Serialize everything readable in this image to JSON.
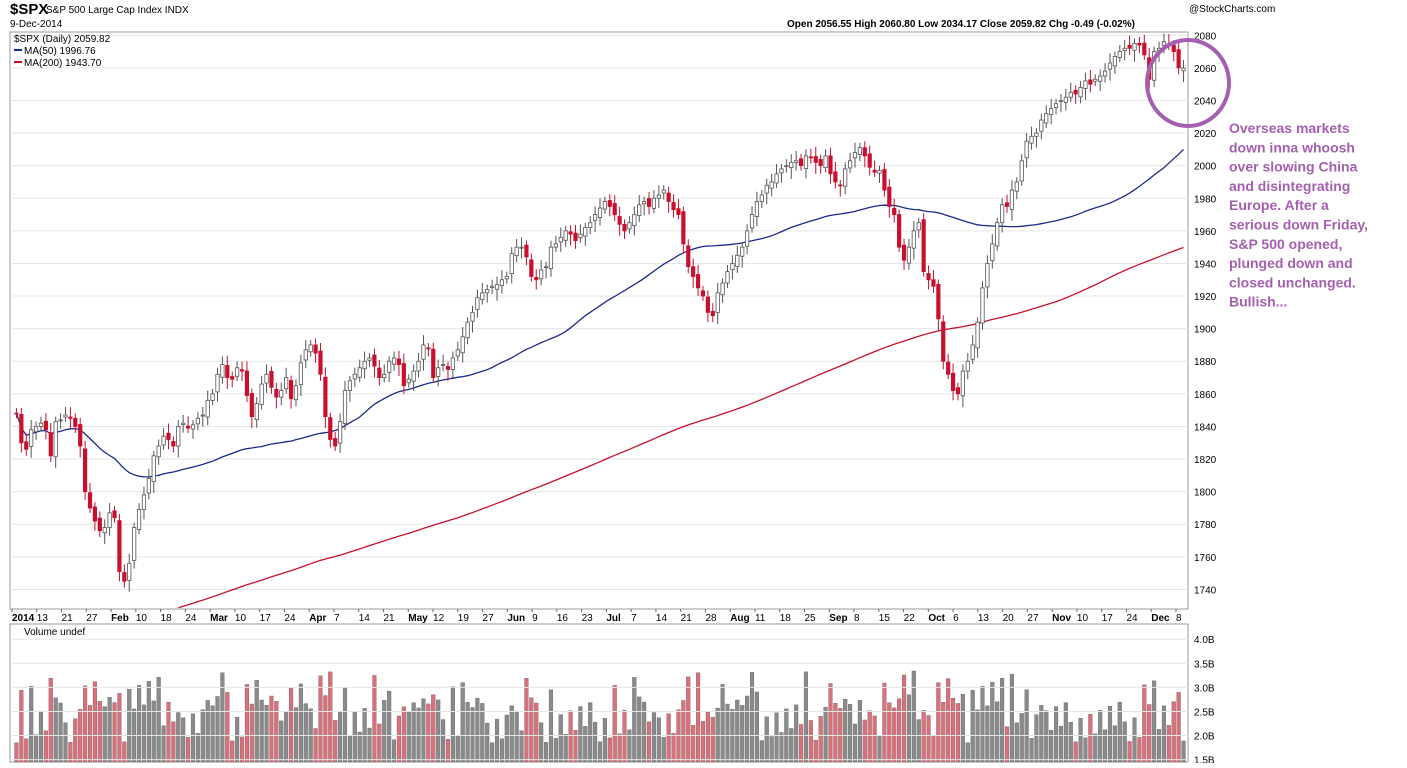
{
  "header": {
    "symbol": "$SPX",
    "name": "S&P 500 Large Cap Index INDX",
    "date": "9-Dec-2014",
    "watermark": "@StockCharts.com",
    "ohlc_text": "Open 2056.55  High 2060.80  Low 2034.17  Close 2059.82  Chg -0.49 (-0.02%)"
  },
  "legend": {
    "price": "$SPX (Daily) 2059.82",
    "ma50": "MA(50) 1996.76",
    "ma200": "MA(200) 1943.70"
  },
  "volume_label": "Volume undef",
  "annotation": [
    "Overseas markets",
    "down inna whoosh",
    "over slowing China",
    "and disintegrating",
    "Europe. After a",
    "serious down Friday,",
    "S&P 500 opened,",
    "plunged down and",
    "closed unchanged.",
    "Bullish..."
  ],
  "colors": {
    "up": "#555555",
    "down": "#c8102e",
    "ma50": "#1c2a8c",
    "ma200": "#c8102e",
    "volume_up": "#8a8a8a",
    "volume_down": "#d9707a",
    "annotation": "#a55fb0"
  },
  "chart_data": {
    "type": "candlestick",
    "ylim": [
      1728,
      2082
    ],
    "y_ticks": [
      1740,
      1760,
      1780,
      1800,
      1820,
      1840,
      1860,
      1880,
      1900,
      1920,
      1940,
      1960,
      1980,
      2000,
      2020,
      2040,
      2060,
      2080
    ],
    "x_tick_labels": [
      "2014",
      "13",
      "21",
      "27",
      "Feb",
      "10",
      "18",
      "24",
      "Mar",
      "10",
      "17",
      "24",
      "Apr",
      "7",
      "14",
      "21",
      "May",
      "12",
      "19",
      "27",
      "Jun",
      "9",
      "16",
      "23",
      "Jul",
      "7",
      "14",
      "21",
      "28",
      "Aug",
      "11",
      "18",
      "25",
      "Sep",
      "8",
      "15",
      "22",
      "Oct",
      "6",
      "13",
      "20",
      "27",
      "Nov",
      "10",
      "17",
      "24",
      "Dec",
      "8"
    ],
    "bold_tick_labels": [
      "2014",
      "Feb",
      "Mar",
      "Apr",
      "May",
      "Jun",
      "Jul",
      "Aug",
      "Sep",
      "Oct",
      "Nov",
      "Dec"
    ],
    "closes": [
      1848,
      1830,
      1826,
      1838,
      1840,
      1842,
      1838,
      1822,
      1843,
      1844,
      1847,
      1845,
      1840,
      1828,
      1800,
      1790,
      1782,
      1776,
      1778,
      1787,
      1784,
      1751,
      1745,
      1756,
      1778,
      1789,
      1798,
      1808,
      1822,
      1828,
      1834,
      1832,
      1828,
      1840,
      1842,
      1839,
      1841,
      1845,
      1847,
      1856,
      1860,
      1872,
      1878,
      1870,
      1869,
      1876,
      1874,
      1859,
      1846,
      1854,
      1866,
      1872,
      1864,
      1858,
      1862,
      1870,
      1857,
      1865,
      1879,
      1887,
      1890,
      1885,
      1872,
      1846,
      1832,
      1828,
      1843,
      1862,
      1868,
      1872,
      1876,
      1880,
      1882,
      1877,
      1870,
      1872,
      1880,
      1882,
      1878,
      1865,
      1869,
      1874,
      1880,
      1890,
      1888,
      1870,
      1876,
      1878,
      1875,
      1882,
      1887,
      1895,
      1904,
      1910,
      1919,
      1922,
      1924,
      1926,
      1927,
      1930,
      1932,
      1946,
      1950,
      1950,
      1944,
      1932,
      1930,
      1936,
      1938,
      1950,
      1952,
      1956,
      1960,
      1958,
      1954,
      1958,
      1962,
      1965,
      1970,
      1974,
      1978,
      1975,
      1970,
      1964,
      1960,
      1965,
      1970,
      1976,
      1978,
      1975,
      1980,
      1982,
      1985,
      1978,
      1973,
      1970,
      1952,
      1938,
      1932,
      1925,
      1920,
      1910,
      1908,
      1922,
      1928,
      1935,
      1940,
      1945,
      1950,
      1960,
      1970,
      1978,
      1982,
      1988,
      1990,
      1995,
      1998,
      2000,
      2002,
      2003,
      2000,
      2006,
      2005,
      2002,
      2000,
      2006,
      1995,
      1990,
      1988,
      1998,
      2003,
      2008,
      2011,
      2006,
      1999,
      1996,
      1997,
      1985,
      1975,
      1970,
      1950,
      1942,
      1950,
      1960,
      1965,
      1935,
      1930,
      1926,
      1906,
      1880,
      1872,
      1862,
      1860,
      1874,
      1880,
      1890,
      1904,
      1925,
      1940,
      1952,
      1965,
      1976,
      1975,
      1985,
      1990,
      2003,
      2015,
      2018,
      2020,
      2028,
      2032,
      2035,
      2038,
      2040,
      2042,
      2045,
      2044,
      2048,
      2052,
      2050,
      2053,
      2055,
      2058,
      2063,
      2067,
      2070,
      2072,
      2072,
      2075,
      2074,
      2068,
      2053,
      2070,
      2072,
      2076,
      2074,
      2070,
      2060,
      2059.8
    ]
  }
}
